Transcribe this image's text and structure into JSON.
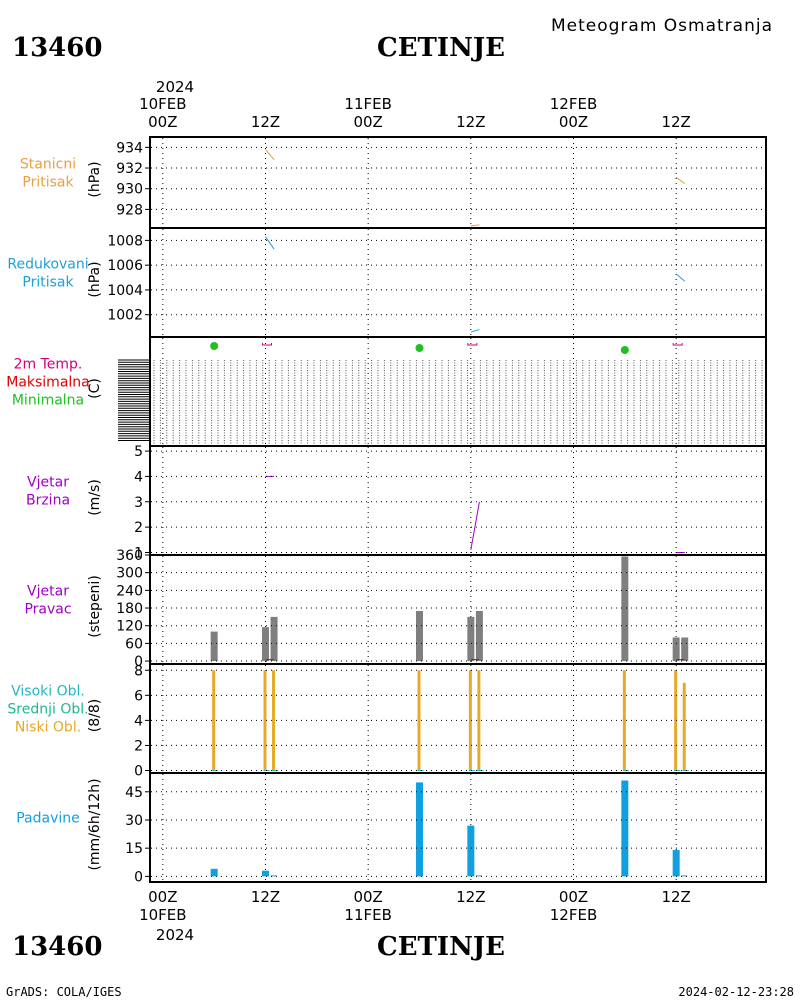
{
  "header": {
    "station_id": "13460",
    "station_name": "CETINJE",
    "product": "Meteogram Osmatranja"
  },
  "footer": {
    "station_id": "13460",
    "station_name": "CETINJE",
    "credit": "GrADS: COLA/IGES",
    "timestamp": "2024-02-12-23:28"
  },
  "time_axis": {
    "year": "2024",
    "ticks": [
      {
        "t": 0,
        "hour": "00Z",
        "date": "10FEB"
      },
      {
        "t": 12,
        "hour": "12Z",
        "date": ""
      },
      {
        "t": 24,
        "hour": "00Z",
        "date": "11FEB"
      },
      {
        "t": 36,
        "hour": "12Z",
        "date": ""
      },
      {
        "t": 48,
        "hour": "00Z",
        "date": "12FEB"
      },
      {
        "t": 60,
        "hour": "12Z",
        "date": ""
      }
    ],
    "range_hours": [
      -1.5,
      70.5
    ]
  },
  "colors": {
    "station_pressure": "#e8a040",
    "reduced_pressure": "#1ea0d8",
    "temp_label": "#d0007c",
    "tmax": "#e00000",
    "tmin": "#20c020",
    "wind": "#a000c8",
    "wind_dir_bar": "#7f7f7f",
    "cloud_high": "#20b8c8",
    "cloud_mid": "#20b890",
    "cloud_low": "#e8a828",
    "precip": "#10a0e0"
  },
  "chart_data": [
    {
      "id": "station_pressure",
      "type": "line",
      "label_lines": [
        "Stanicni",
        "Pritisak"
      ],
      "label_colors": [
        "station_pressure",
        "station_pressure"
      ],
      "ylabel": "(hPa)",
      "ylim": [
        926.2,
        935
      ],
      "yticks": [
        928,
        930,
        932,
        934
      ],
      "segments": [
        {
          "x": [
            12,
            13
          ],
          "y": [
            933.8,
            932.8
          ]
        },
        {
          "x": [
            36,
            37
          ],
          "y": [
            926.4,
            926.5
          ]
        },
        {
          "x": [
            60,
            61
          ],
          "y": [
            931.1,
            930.5
          ]
        }
      ]
    },
    {
      "id": "reduced_pressure",
      "type": "line",
      "label_lines": [
        "Redukovani",
        "Pritisak"
      ],
      "label_colors": [
        "reduced_pressure",
        "reduced_pressure"
      ],
      "ylabel": "(hPa)",
      "ylim": [
        1000.2,
        1009
      ],
      "yticks": [
        1002,
        1004,
        1006,
        1008
      ],
      "segments": [
        {
          "x": [
            12,
            13
          ],
          "y": [
            1008.3,
            1007.3
          ]
        },
        {
          "x": [
            36,
            37
          ],
          "y": [
            1000.6,
            1000.8
          ]
        },
        {
          "x": [
            60,
            61
          ],
          "y": [
            1005.3,
            1004.7
          ]
        }
      ]
    },
    {
      "id": "temperature",
      "type": "scatter",
      "label_lines": [
        "2m Temp.",
        "Maksimalna",
        "Minimalna"
      ],
      "label_colors": [
        "temp_label",
        "tmax",
        "tmin"
      ],
      "ylabel": "(C)",
      "min_points": [
        {
          "x": 6,
          "label": "min"
        },
        {
          "x": 30,
          "label": "min"
        },
        {
          "x": 54,
          "label": "min"
        }
      ],
      "max_marks": [
        {
          "x": 12
        },
        {
          "x": 36
        },
        {
          "x": 60
        }
      ]
    },
    {
      "id": "wind_speed",
      "type": "line",
      "label_lines": [
        "Vjetar",
        "Brzina"
      ],
      "label_colors": [
        "wind",
        "wind"
      ],
      "ylabel": "(m/s)",
      "ylim": [
        0.9,
        5.2
      ],
      "yticks": [
        1,
        2,
        3,
        4,
        5
      ],
      "segments": [
        {
          "x": [
            12,
            13
          ],
          "y": [
            4,
            4
          ]
        },
        {
          "x": [
            36,
            37
          ],
          "y": [
            1.1,
            3
          ]
        },
        {
          "x": [
            60,
            61
          ],
          "y": [
            1,
            1
          ]
        }
      ]
    },
    {
      "id": "wind_direction",
      "type": "bar",
      "label_lines": [
        "Vjetar",
        "Pravac"
      ],
      "label_colors": [
        "wind",
        "wind"
      ],
      "ylabel": "(stepeni)",
      "ylim": [
        -10,
        360
      ],
      "yticks": [
        0,
        60,
        120,
        180,
        240,
        300,
        360
      ],
      "x": [
        6,
        12,
        13,
        30,
        36,
        37,
        54,
        60,
        61
      ],
      "values": [
        100,
        115,
        150,
        170,
        150,
        170,
        355,
        80,
        80
      ]
    },
    {
      "id": "clouds",
      "type": "bar",
      "label_lines": [
        "Visoki Obl.",
        "Srednji Obl.",
        "Niski Obl."
      ],
      "label_colors": [
        "cloud_high",
        "cloud_mid",
        "cloud_low"
      ],
      "ylabel": "(8/8)",
      "ylim": [
        -0.2,
        8.5
      ],
      "yticks": [
        0,
        2,
        4,
        6,
        8
      ],
      "x": [
        6,
        12,
        13,
        30,
        36,
        37,
        54,
        60,
        61
      ],
      "values": [
        8,
        8,
        8,
        8,
        8,
        8,
        8,
        8,
        7
      ]
    },
    {
      "id": "precipitation",
      "type": "bar",
      "label_lines": [
        "Padavine"
      ],
      "label_colors": [
        "precip"
      ],
      "ylabel": "(mm/6h/12h)",
      "ylim": [
        -3,
        55
      ],
      "yticks": [
        0,
        15,
        30,
        45
      ],
      "x": [
        6,
        12,
        13,
        30,
        36,
        37,
        54,
        60,
        61
      ],
      "values": [
        4,
        3,
        0.5,
        50,
        27,
        0.5,
        51,
        14,
        0.5
      ]
    }
  ]
}
